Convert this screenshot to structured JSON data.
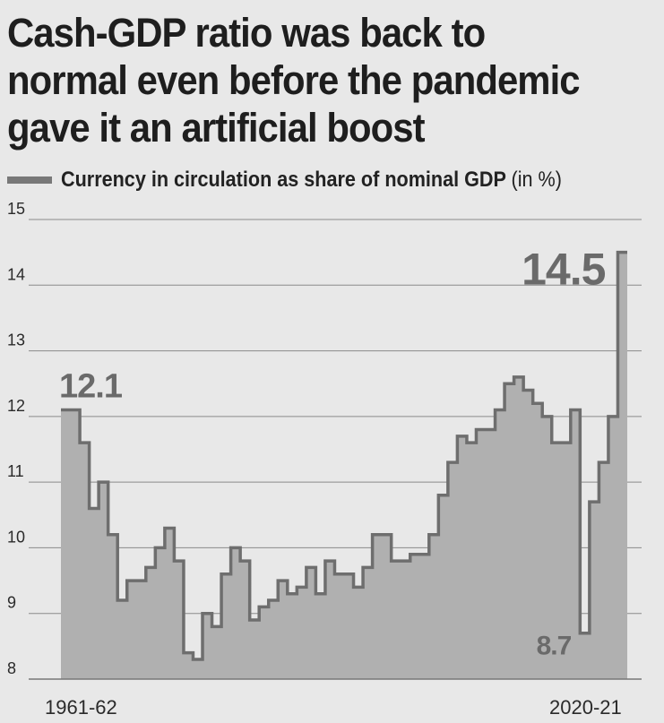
{
  "title": "Cash-GDP ratio was back to normal even before the pandemic gave it an artificial boost",
  "legend": {
    "label": "Currency in circulation as share of nominal GDP",
    "unit": "(in %)"
  },
  "colors": {
    "background": "#e8e8e8",
    "area": "#b0b0b0",
    "line": "#6e6e6e",
    "grid": "#8a8a8a",
    "annotation": "#6a6a6a"
  },
  "chart_data": {
    "type": "area",
    "title": "Cash-GDP ratio was back to normal even before the pandemic gave it an artificial boost",
    "ylabel": "",
    "xlabel": "",
    "ylim": [
      8,
      15
    ],
    "yticks": [
      "8",
      "9",
      "10",
      "11",
      "12",
      "13",
      "14",
      "15"
    ],
    "grid": true,
    "legend_position": "top-left",
    "x_tick_labels": [
      "1961-62",
      "2020-21"
    ],
    "step": true,
    "series": [
      {
        "name": "Currency in circulation as share of nominal GDP",
        "values": [
          12.1,
          12.1,
          11.6,
          10.6,
          11.0,
          10.2,
          9.2,
          9.5,
          9.5,
          9.7,
          10.0,
          10.3,
          9.8,
          8.4,
          8.3,
          9.0,
          8.8,
          9.6,
          10.0,
          9.8,
          8.9,
          9.1,
          9.2,
          9.5,
          9.3,
          9.4,
          9.7,
          9.3,
          9.8,
          9.6,
          9.6,
          9.4,
          9.7,
          10.2,
          10.2,
          9.8,
          9.8,
          9.9,
          9.9,
          10.2,
          10.8,
          11.3,
          11.7,
          11.6,
          11.8,
          11.8,
          12.1,
          12.5,
          12.6,
          12.4,
          12.2,
          12.0,
          11.6,
          11.6,
          12.1,
          8.7,
          10.7,
          11.3,
          12.0,
          14.5
        ]
      }
    ],
    "annotations": [
      {
        "label": "12.1",
        "x_index": 0,
        "value": 12.1
      },
      {
        "label": "8.7",
        "x_index": 55,
        "value": 8.7
      },
      {
        "label": "14.5",
        "x_index": 59,
        "value": 14.5
      }
    ]
  }
}
